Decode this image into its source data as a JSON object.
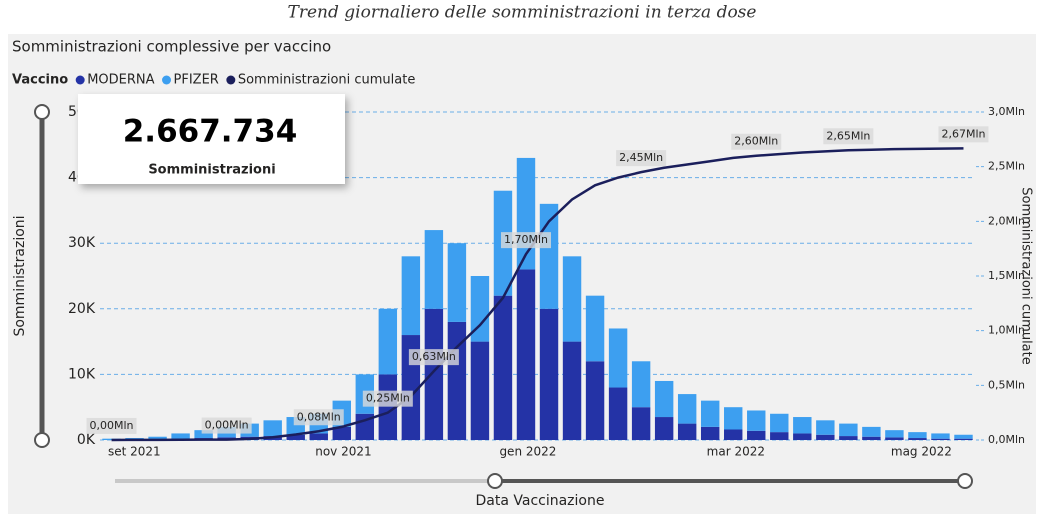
{
  "chart_data": {
    "type": "bar",
    "suptitle": "Trend giornaliero delle somministrazioni in terza dose",
    "title": "Somministrazioni complessive per vaccino",
    "legend_title": "Vaccino",
    "ylabel": "Somministrazioni",
    "y2label": "Somministrazioni cumulate",
    "xlabel": "Data Vaccinazione",
    "stacked": true,
    "grid": true,
    "kpi": {
      "value": 2667734,
      "label": "2.667.734",
      "caption": "Somministrazioni"
    },
    "categories": [
      "set 2021",
      null,
      null,
      null,
      null,
      null,
      null,
      null,
      null,
      "nov 2021",
      null,
      null,
      null,
      null,
      null,
      null,
      null,
      "gen 2022",
      null,
      null,
      null,
      null,
      null,
      null,
      null,
      null,
      "mar 2022",
      null,
      null,
      null,
      null,
      null,
      null,
      null,
      "mag 2022",
      null,
      null,
      null
    ],
    "series": [
      {
        "name": "MODERNA",
        "color": "#2433a6",
        "values": [
          0,
          0,
          100,
          200,
          300,
          400,
          500,
          600,
          800,
          1000,
          2000,
          4000,
          10000,
          16000,
          20000,
          18000,
          15000,
          22000,
          26000,
          20000,
          15000,
          12000,
          8000,
          5000,
          3500,
          2500,
          2000,
          1600,
          1400,
          1200,
          1000,
          800,
          600,
          500,
          400,
          300,
          200,
          200
        ]
      },
      {
        "name": "PFIZER",
        "color": "#3d9ff0",
        "values": [
          200,
          300,
          400,
          800,
          1200,
          1600,
          2000,
          2400,
          2700,
          3000,
          4000,
          6000,
          10000,
          12000,
          12000,
          12000,
          10000,
          16000,
          17000,
          16000,
          13000,
          10000,
          9000,
          7000,
          5500,
          4500,
          4000,
          3400,
          3100,
          2800,
          2500,
          2200,
          1900,
          1500,
          1100,
          900,
          800,
          600
        ]
      },
      {
        "name": "Somministrazioni cumulate",
        "type": "line",
        "axis": "y2",
        "color": "#1b1f5c",
        "values": [
          500,
          1000,
          1500,
          2000,
          3000,
          4000,
          10000,
          25000,
          50000,
          80000,
          120000,
          180000,
          250000,
          400000,
          630000,
          850000,
          1050000,
          1300000,
          1700000,
          2000000,
          2200000,
          2330000,
          2400000,
          2450000,
          2490000,
          2520000,
          2550000,
          2580000,
          2600000,
          2615000,
          2630000,
          2640000,
          2650000,
          2655000,
          2660000,
          2663000,
          2665000,
          2667734
        ],
        "value_labels": [
          "0,00Mln",
          null,
          null,
          null,
          null,
          "0,00Mln",
          null,
          null,
          null,
          "0,08Mln",
          null,
          null,
          "0,25Mln",
          null,
          "0,63Mln",
          null,
          null,
          null,
          "1,70Mln",
          null,
          null,
          null,
          null,
          "2,45Mln",
          null,
          null,
          null,
          null,
          "2,60Mln",
          null,
          null,
          null,
          "2,65Mln",
          null,
          null,
          null,
          null,
          "2,67Mln"
        ]
      }
    ],
    "ylim": [
      0,
      50000
    ],
    "yticks": [
      {
        "value": 0,
        "label": "0K"
      },
      {
        "value": 10000,
        "label": "10K"
      },
      {
        "value": 20000,
        "label": "20K"
      },
      {
        "value": 30000,
        "label": "30K"
      },
      {
        "value": 40000,
        "label": "40K"
      },
      {
        "value": 50000,
        "label": "50K"
      }
    ],
    "y2lim": [
      0,
      3000000
    ],
    "y2ticks": [
      {
        "value": 0,
        "label": "0,0Mln"
      },
      {
        "value": 500000,
        "label": "0,5Mln"
      },
      {
        "value": 1000000,
        "label": "1,0Mln"
      },
      {
        "value": 1500000,
        "label": "1,5Mln"
      },
      {
        "value": 2000000,
        "label": "2,0Mln"
      },
      {
        "value": 2500000,
        "label": "2,5Mln"
      },
      {
        "value": 3000000,
        "label": "3,0Mln"
      }
    ]
  }
}
